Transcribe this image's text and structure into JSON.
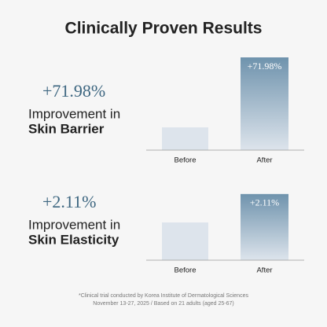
{
  "title": "Clinically Proven Results",
  "chart_data": [
    {
      "type": "bar",
      "headline": "+71.98%",
      "caption": [
        "Improvement in",
        "Skin Barrier"
      ],
      "categories": [
        "Before",
        "After"
      ],
      "values": [
        100,
        171.98
      ],
      "bar_annotation": "+71.98%",
      "colors": [
        "#dde4ec",
        "#6f93ad"
      ],
      "ylim": [
        76.6,
        173.6
      ]
    },
    {
      "type": "bar",
      "headline": "+2.11%",
      "caption": [
        "Improvement in",
        "Skin Elasticity"
      ],
      "categories": [
        "Before",
        "After"
      ],
      "values": [
        100,
        102.11
      ],
      "bar_annotation": "+2.11%",
      "colors": [
        "#dde4ec",
        "#6f93ad"
      ],
      "ylim": [
        97.2,
        104.2
      ]
    }
  ],
  "footnote": [
    "*Clinical trial conducted by Korea Institute of Dermatological Sciences",
    "November 13-27, 2025 / Based on 21 adults (aged 25-67)"
  ]
}
